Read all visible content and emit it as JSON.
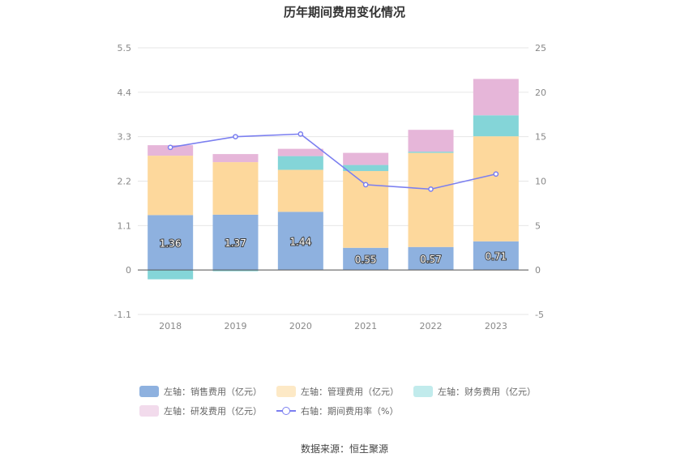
{
  "title": "历年期间费用变化情况",
  "source": "数据来源：恒生聚源",
  "colors": {
    "sales": "#8eb1df",
    "admin": "#fdd89c",
    "finance": "#84d5d8",
    "rnd": "#e6b6d9",
    "rate": "#7b7ff0"
  },
  "chart_data": {
    "type": "bar",
    "stacked": true,
    "categories": [
      "2018",
      "2019",
      "2020",
      "2021",
      "2022",
      "2023"
    ],
    "series": [
      {
        "name": "左轴：销售费用（亿元）",
        "axis": "left",
        "values": [
          1.36,
          1.37,
          1.44,
          0.55,
          0.57,
          0.71
        ],
        "labels": [
          "1.36",
          "1.37",
          "1.44",
          "0.55",
          "0.57",
          "0.71"
        ]
      },
      {
        "name": "左轴：管理费用（亿元）",
        "axis": "left",
        "values": [
          1.47,
          1.3,
          1.04,
          1.9,
          2.33,
          2.6
        ]
      },
      {
        "name": "左轴：财务费用（亿元）",
        "axis": "left",
        "values": [
          -0.23,
          -0.03,
          0.34,
          0.15,
          0.03,
          0.52
        ]
      },
      {
        "name": "左轴：研发费用（亿元）",
        "axis": "left",
        "values": [
          0.26,
          0.2,
          0.18,
          0.3,
          0.54,
          0.9
        ]
      },
      {
        "name": "右轴：期间费用率（%）",
        "type": "line",
        "axis": "right",
        "values": [
          13.8,
          15.0,
          15.3,
          9.6,
          9.1,
          10.8
        ]
      }
    ],
    "y_left": {
      "min": -1.1,
      "max": 5.5,
      "ticks": [
        "5.5",
        "4.4",
        "3.3",
        "2.2",
        "1.1",
        "0",
        "-1.1"
      ]
    },
    "y_right": {
      "min": -5,
      "max": 25,
      "ticks": [
        "25",
        "20",
        "15",
        "10",
        "5",
        "0",
        "-5"
      ]
    },
    "grid": true,
    "legend_position": "bottom"
  }
}
